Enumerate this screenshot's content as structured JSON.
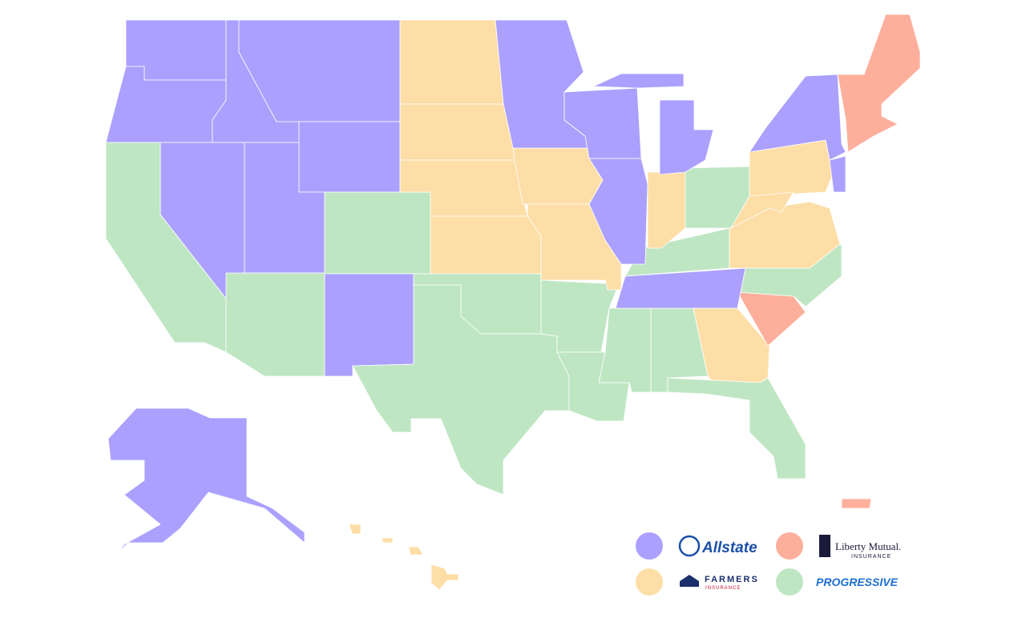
{
  "legend": [
    {
      "color": "#aba0fd",
      "logo": [
        "Allstate"
      ]
    },
    {
      "color": "#fdaf9c",
      "logo": [
        "Liberty Mutual.",
        "INSURANCE"
      ]
    },
    {
      "color": "#fddea6",
      "logo": [
        "FARMERS",
        "INSURANCE"
      ]
    },
    {
      "color": "#bfe6c3",
      "logo": [
        "PROGRESSIVE"
      ]
    }
  ]
}
